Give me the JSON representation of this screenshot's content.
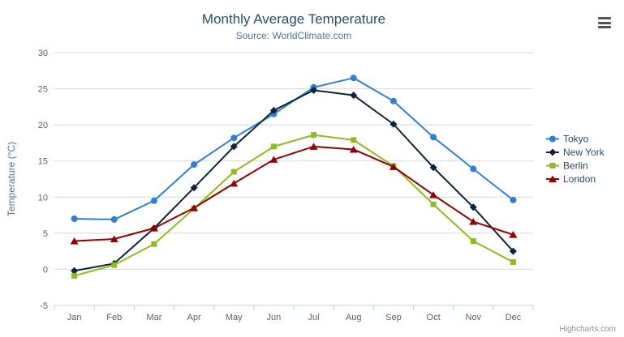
{
  "header": {
    "title": "Monthly Average Temperature",
    "subtitle": "Source: WorldClimate.com"
  },
  "credits": {
    "label": "Highcharts.com"
  },
  "chart_data": {
    "type": "line",
    "title": "Monthly Average Temperature",
    "subtitle": "Source: WorldClimate.com",
    "xlabel": "",
    "ylabel": "Temperature (°C)",
    "ylim": [
      -5,
      30
    ],
    "yticks": [
      -5,
      0,
      5,
      10,
      15,
      20,
      25,
      30
    ],
    "grid": true,
    "legend_position": "right",
    "categories": [
      "Jan",
      "Feb",
      "Mar",
      "Apr",
      "May",
      "Jun",
      "Jul",
      "Aug",
      "Sep",
      "Oct",
      "Nov",
      "Dec"
    ],
    "series": [
      {
        "name": "Tokyo",
        "color": "#2f7ed8",
        "marker": "circle",
        "values": [
          7.0,
          6.9,
          9.5,
          14.5,
          18.2,
          21.5,
          25.2,
          26.5,
          23.3,
          18.3,
          13.9,
          9.6
        ]
      },
      {
        "name": "New York",
        "color": "#0d233a",
        "marker": "diamond",
        "values": [
          -0.2,
          0.8,
          5.7,
          11.3,
          17.0,
          22.0,
          24.8,
          24.1,
          20.1,
          14.1,
          8.6,
          2.5
        ]
      },
      {
        "name": "Berlin",
        "color": "#8bbc21",
        "marker": "square",
        "values": [
          -0.9,
          0.6,
          3.5,
          8.4,
          13.5,
          17.0,
          18.6,
          17.9,
          14.3,
          9.0,
          3.9,
          1.0
        ]
      },
      {
        "name": "London",
        "color": "#910000",
        "marker": "triangle",
        "values": [
          3.9,
          4.2,
          5.7,
          8.5,
          11.9,
          15.2,
          17.0,
          16.6,
          14.2,
          10.3,
          6.6,
          4.8
        ]
      }
    ]
  }
}
